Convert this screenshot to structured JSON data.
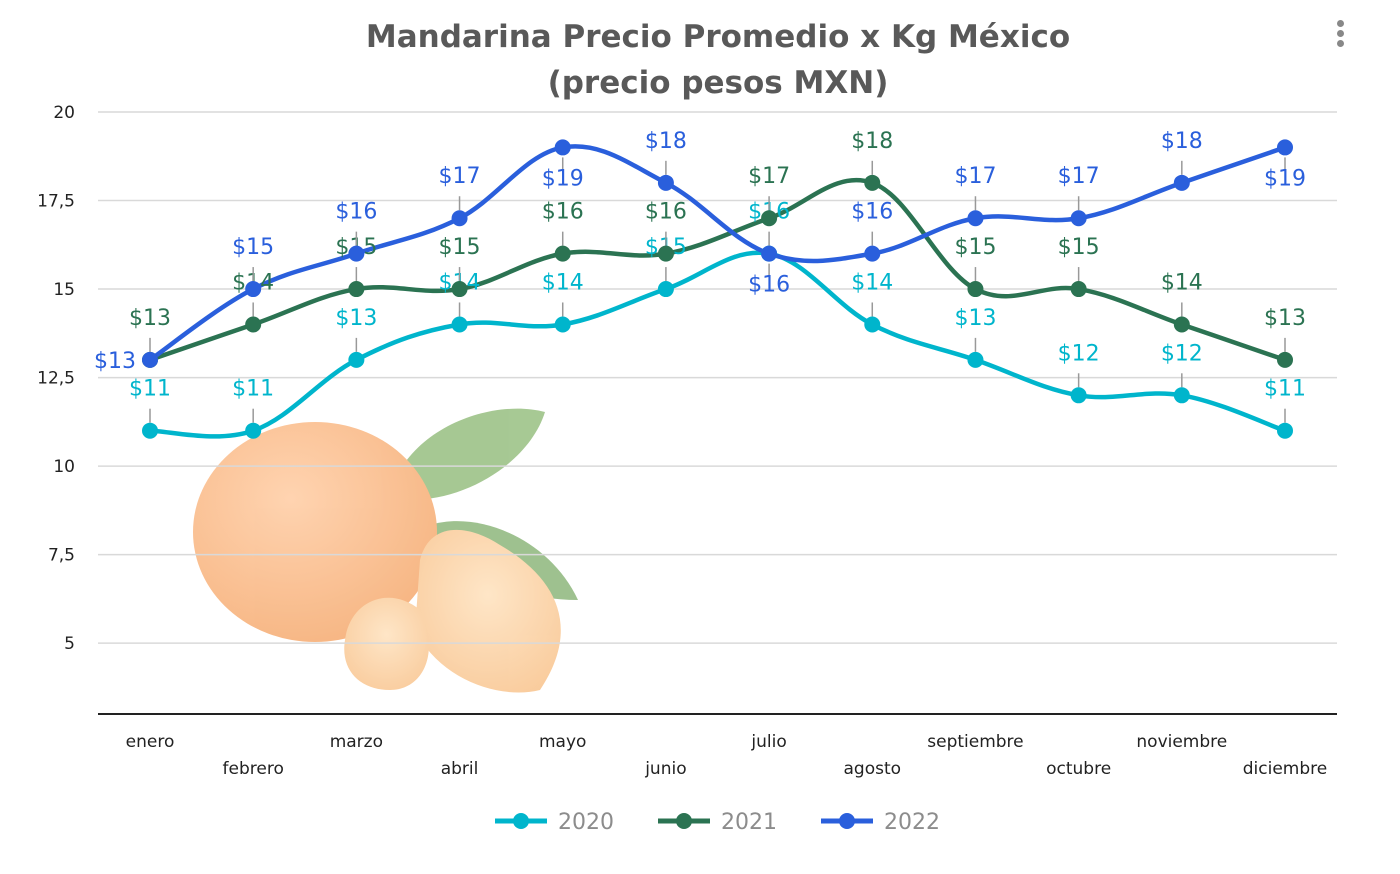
{
  "chart_data": {
    "type": "line",
    "title": [
      "Mandarina Precio Promedio x Kg México",
      "(precio pesos MXN)"
    ],
    "xlabel": "",
    "ylabel": "",
    "categories": [
      "enero",
      "febrero",
      "marzo",
      "abril",
      "mayo",
      "junio",
      "julio",
      "agosto",
      "septiembre",
      "octubre",
      "noviembre",
      "diciembre"
    ],
    "ylim": [
      3,
      20
    ],
    "yticks": [
      5,
      7.5,
      10,
      12.5,
      15,
      17.5,
      20
    ],
    "ytick_labels": [
      "5",
      "7,5",
      "10",
      "12,5",
      "15",
      "17,5",
      "20"
    ],
    "grid": true,
    "smooth": true,
    "legend": "bottom",
    "data_label_prefix": "$",
    "series": [
      {
        "name": "2020",
        "color": "#00b5cc",
        "values": [
          11,
          11,
          13,
          14,
          14,
          15,
          16,
          14,
          13,
          12,
          12,
          11
        ]
      },
      {
        "name": "2021",
        "color": "#2b7352",
        "values": [
          13,
          14,
          15,
          15,
          16,
          16,
          17,
          18,
          15,
          15,
          14,
          13
        ]
      },
      {
        "name": "2022",
        "color": "#2a5fdc",
        "values": [
          13,
          15,
          16,
          17,
          19,
          18,
          16,
          16,
          17,
          17,
          18,
          19
        ]
      }
    ]
  },
  "menu_icon": "kebab-menu-icon",
  "background_image": "mandarin-orange-illustration"
}
